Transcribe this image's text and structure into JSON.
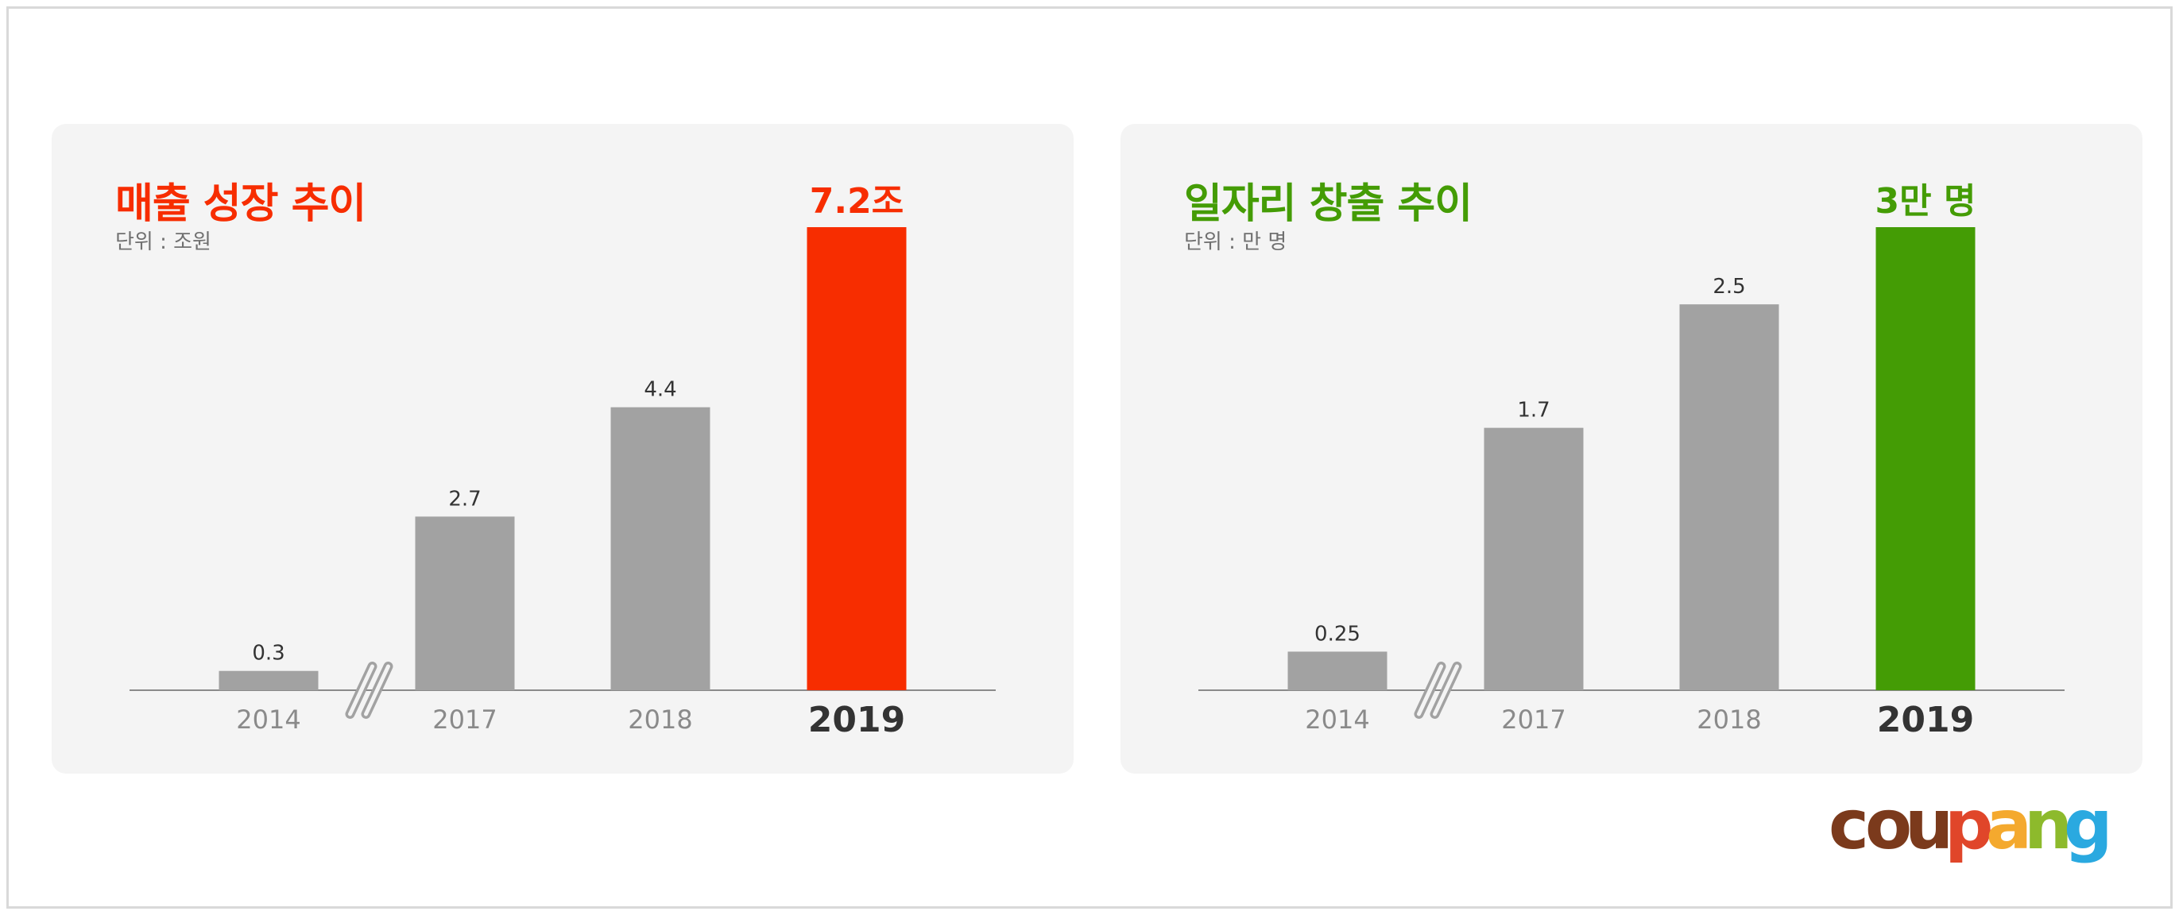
{
  "chart_data": [
    {
      "type": "bar",
      "title": "매출 성장 추이",
      "unit": "단위 : 조원",
      "categories": [
        "2014",
        "2017",
        "2018",
        "2019"
      ],
      "values": [
        0.3,
        2.7,
        4.4,
        7.2
      ],
      "value_labels": [
        "0.3",
        "2.7",
        "4.4",
        "7.2조"
      ],
      "highlight_index": 3,
      "axis_break_after": 0,
      "ylim": [
        0,
        7.2
      ],
      "colors": {
        "bar": "#a2a2a2",
        "highlight": "#f72d00",
        "title": "#f72d00"
      }
    },
    {
      "type": "bar",
      "title": "일자리 창출 추이",
      "unit": "단위 : 만 명",
      "categories": [
        "2014",
        "2017",
        "2018",
        "2019"
      ],
      "values": [
        0.25,
        1.7,
        2.5,
        3
      ],
      "value_labels": [
        "0.25",
        "1.7",
        "2.5",
        "3만 명"
      ],
      "highlight_index": 3,
      "axis_break_after": 0,
      "ylim": [
        0,
        3
      ],
      "colors": {
        "bar": "#a2a2a2",
        "highlight": "#449c05",
        "title": "#449c05"
      }
    }
  ],
  "logo": {
    "text": "coupang",
    "letter_colors": [
      "#7b3a1c",
      "#7b3a1c",
      "#7b3a1c",
      "#e0462a",
      "#f4a92e",
      "#8dba2c",
      "#2aa9e0"
    ]
  }
}
